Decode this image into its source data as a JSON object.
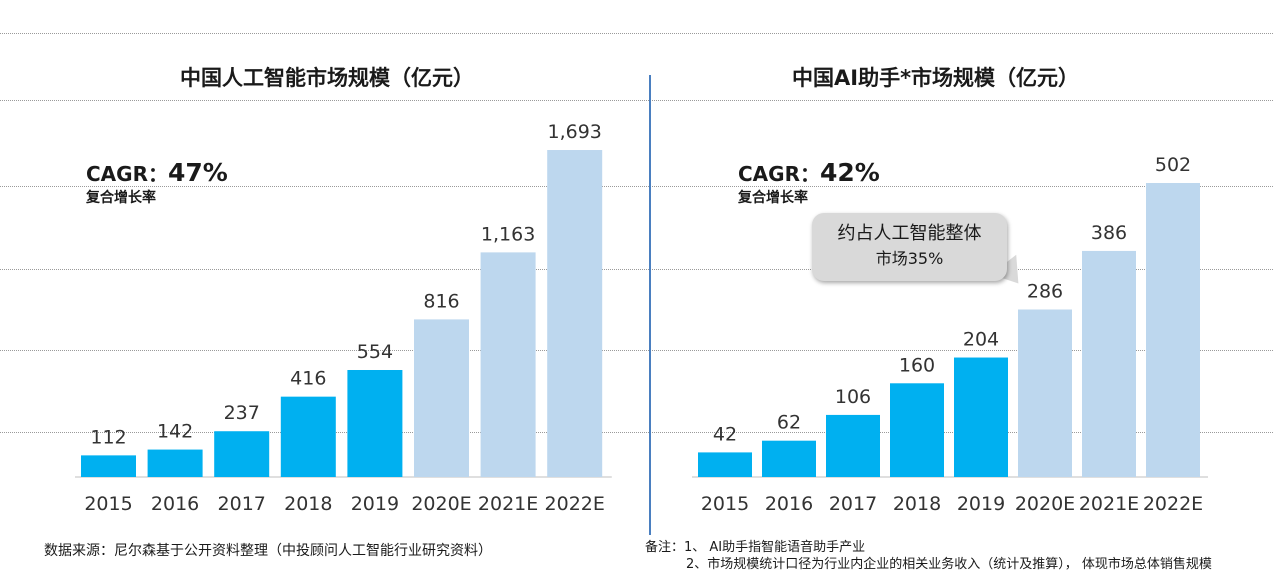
{
  "chart_data": [
    {
      "type": "bar",
      "title": "中国人工智能市场规模（亿元）",
      "categories": [
        "2015",
        "2016",
        "2017",
        "2018",
        "2019",
        "2020E",
        "2021E",
        "2022E"
      ],
      "values": [
        112,
        142,
        237,
        416,
        554,
        816,
        1163,
        1693
      ],
      "value_labels": [
        "112",
        "142",
        "237",
        "416",
        "554",
        "816",
        "1,163",
        "1,693"
      ],
      "estimate_flags": [
        false,
        false,
        false,
        false,
        false,
        true,
        true,
        true
      ],
      "colors": {
        "actual": "#00b0f0",
        "estimate": "#bdd7ee"
      },
      "ylim": [
        0,
        1750
      ],
      "cagr_label": "CAGR：",
      "cagr_value": "47%",
      "cagr_sub": "复合增长率"
    },
    {
      "type": "bar",
      "title": "中国AI助手*市场规模（亿元）",
      "categories": [
        "2015",
        "2016",
        "2017",
        "2018",
        "2019",
        "2020E",
        "2021E",
        "2022E"
      ],
      "values": [
        42,
        62,
        106,
        160,
        204,
        286,
        386,
        502
      ],
      "value_labels": [
        "42",
        "62",
        "106",
        "160",
        "204",
        "286",
        "386",
        "502"
      ],
      "estimate_flags": [
        false,
        false,
        false,
        false,
        false,
        true,
        true,
        true
      ],
      "colors": {
        "actual": "#00b0f0",
        "estimate": "#bdd7ee"
      },
      "ylim": [
        0,
        502
      ],
      "cagr_label": "CAGR：",
      "cagr_value": "42%",
      "cagr_sub": "复合增长率",
      "callout_line1": "约占人工智能整体",
      "callout_line2": "市场35%"
    }
  ],
  "source_text": "数据来源：尼尔森基于公开资料整理（中投顾问人工智能行业研究资料）",
  "notes": {
    "line1": "备注：1、 AI助手指智能语音助手产业",
    "line2": "2、市场规模统计口径为行业内企业的相关业务收入（统计及推算）， 体现市场总体销售规模"
  }
}
